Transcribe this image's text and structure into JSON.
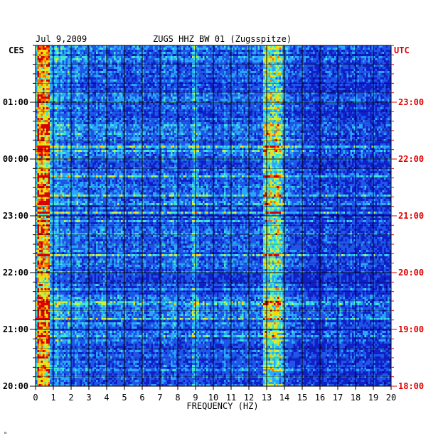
{
  "chart_data": {
    "type": "heatmap",
    "date": "Jul 9,2009",
    "title": "ZUGS HHZ BW 01 (Zugsspitze)",
    "xlabel": "FREQUENCY (HZ)",
    "xlim": [
      0,
      20
    ],
    "x_ticks": [
      "0",
      "1",
      "2",
      "3",
      "4",
      "5",
      "6",
      "7",
      "8",
      "9",
      "10",
      "11",
      "12",
      "13",
      "14",
      "15",
      "16",
      "17",
      "18",
      "19",
      "20"
    ],
    "left_axis_label": "CES",
    "right_axis_label": "UTC",
    "left_time_ticks": [
      "01:00",
      "00:00",
      "23:00",
      "22:00",
      "21:00",
      "20:00"
    ],
    "right_time_ticks": [
      "23:00",
      "22:00",
      "21:00",
      "20:00",
      "19:00",
      "18:00"
    ],
    "time_range_local": [
      "20:00",
      "02:00"
    ],
    "colormap": [
      "#0a0a8c",
      "#1020c8",
      "#1f56e8",
      "#2aa6ff",
      "#3fe6d2",
      "#c8f040",
      "#ffd200",
      "#ff6a00",
      "#d80000"
    ],
    "features": [
      {
        "name": "low-frequency band",
        "freq_hz": [
          0.1,
          0.8
        ],
        "intensity": "high"
      },
      {
        "name": "narrow band",
        "freq_hz": [
          12.8,
          13.9
        ],
        "intensity": "medium-high"
      },
      {
        "name": "narrow band",
        "freq_hz": [
          8.8,
          9.2
        ],
        "intensity": "low"
      }
    ],
    "colors": {
      "left_axis": "#000000",
      "right_axis": "#e00000",
      "grid": "#000000"
    },
    "grid": true,
    "footer_mark": "\""
  }
}
